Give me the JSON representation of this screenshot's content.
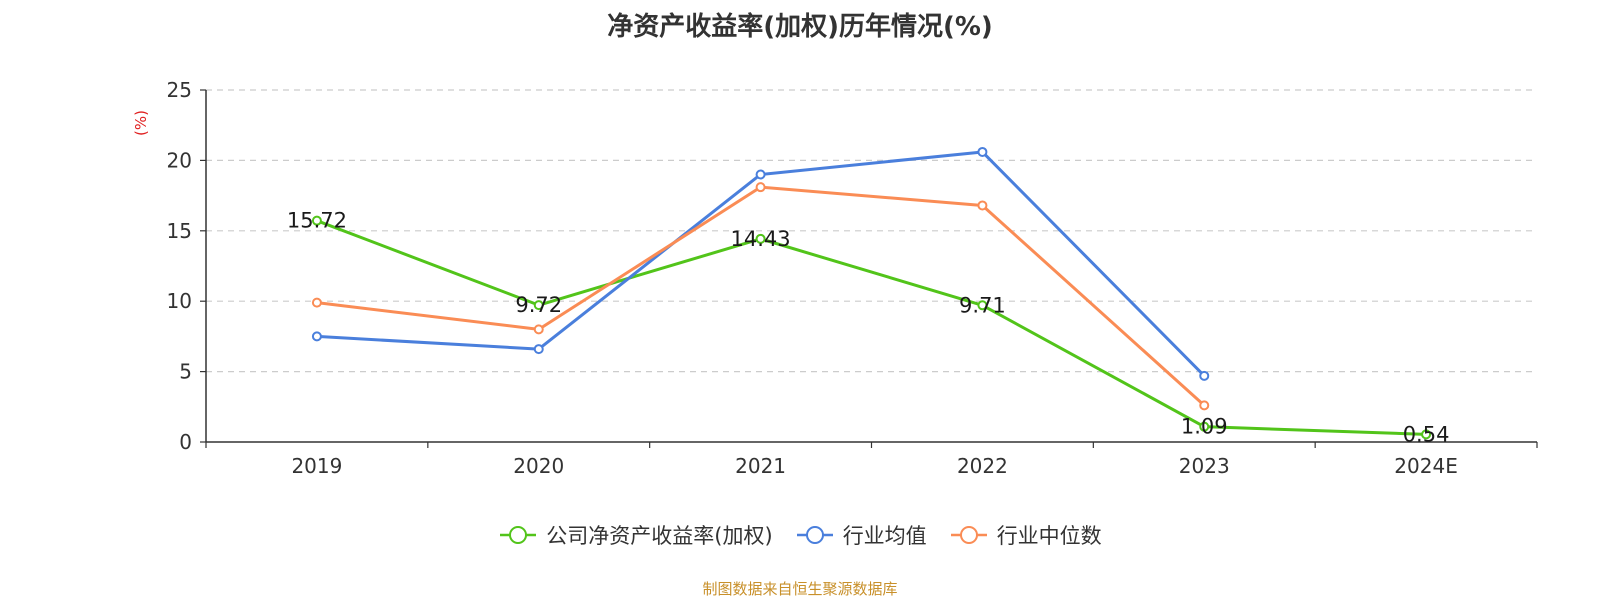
{
  "title": "净资产收益率(加权)历年情况(%)",
  "source": "制图数据来自恒生聚源数据库",
  "chart_data": {
    "type": "line",
    "title": "净资产收益率(加权)历年情况(%)",
    "ylabel": "(%)",
    "xlabel": "",
    "categories": [
      "2019",
      "2020",
      "2021",
      "2022",
      "2023",
      "2024E"
    ],
    "ylim": [
      0,
      25
    ],
    "yticks": [
      "0",
      "5",
      "10",
      "15",
      "20",
      "25"
    ],
    "grid": true,
    "legend_position": "bottom",
    "series": [
      {
        "name": "公司净资产收益率(加权)",
        "color": "#52c41a",
        "values": [
          15.72,
          9.72,
          14.43,
          9.71,
          1.09,
          0.54
        ],
        "labels": [
          "15.72",
          "9.72",
          "14.43",
          "9.71",
          "1.09",
          "0.54"
        ]
      },
      {
        "name": "行业均值",
        "color": "#4a7fdc",
        "values": [
          7.5,
          6.6,
          19.0,
          20.6,
          4.7,
          null
        ]
      },
      {
        "name": "行业中位数",
        "color": "#fa8c55",
        "values": [
          9.9,
          8.0,
          18.1,
          16.8,
          2.6,
          null
        ]
      }
    ]
  }
}
